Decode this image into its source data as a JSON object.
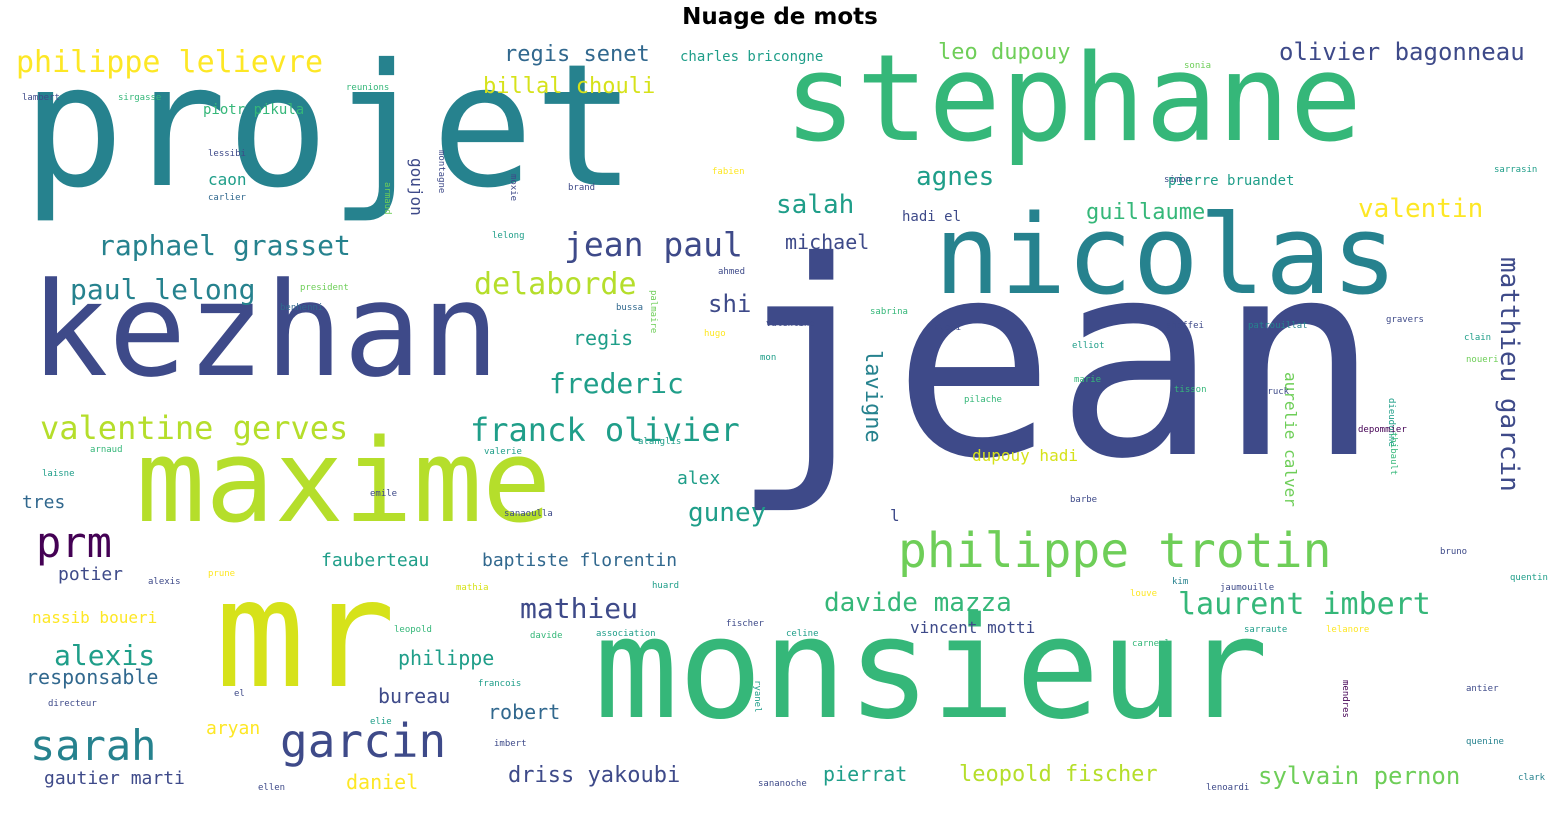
{
  "title": "Nuage de mots",
  "palette": {
    "v0": "#440154",
    "v1": "#3e4a89",
    "v2": "#31688e",
    "v3": "#26828e",
    "v4": "#1f9e89",
    "v5": "#35b779",
    "v6": "#6ece58",
    "v7": "#b5de2b",
    "v8": "#d6e21a",
    "v9": "#fde725"
  },
  "words": [
    {
      "text": "jean",
      "color": "v1"
    },
    {
      "text": "projet",
      "color": "v3"
    },
    {
      "text": "monsieur",
      "color": "v5"
    },
    {
      "text": "stephane",
      "color": "v5"
    },
    {
      "text": "kezhan",
      "color": "v1"
    },
    {
      "text": "nicolas",
      "color": "v3"
    },
    {
      "text": "maxime",
      "color": "v7"
    },
    {
      "text": "mr",
      "color": "v8"
    },
    {
      "text": "philippe trotin",
      "color": "v6"
    },
    {
      "text": "garcin",
      "color": "v1"
    },
    {
      "text": "sarah",
      "color": "v3"
    },
    {
      "text": "prm",
      "color": "v0"
    },
    {
      "text": "philippe lelievre",
      "color": "v9"
    },
    {
      "text": "raphael grasset",
      "color": "v3"
    },
    {
      "text": "jean paul",
      "color": "v1"
    },
    {
      "text": "valentine gerves",
      "color": "v7"
    },
    {
      "text": "franck olivier",
      "color": "v4"
    },
    {
      "text": "laurent imbert",
      "color": "v5"
    },
    {
      "text": "davide mazza",
      "color": "v5"
    },
    {
      "text": "paul lelong",
      "color": "v3"
    },
    {
      "text": "delaborde",
      "color": "v7"
    },
    {
      "text": "frederic",
      "color": "v4"
    },
    {
      "text": "matthieu garcin",
      "color": "v1"
    },
    {
      "text": "olivier bagonneau",
      "color": "v1"
    },
    {
      "text": "regis senet",
      "color": "v2"
    },
    {
      "text": "billal chouli",
      "color": "v8"
    },
    {
      "text": "salah",
      "color": "v4"
    },
    {
      "text": "agnes",
      "color": "v4"
    },
    {
      "text": "valentin",
      "color": "v9"
    },
    {
      "text": "guney",
      "color": "v4"
    },
    {
      "text": "alexis",
      "color": "v4"
    },
    {
      "text": "mathieu",
      "color": "v1"
    },
    {
      "text": "lavigne",
      "color": "v3"
    },
    {
      "text": "leo dupouy",
      "color": "v6"
    },
    {
      "text": "shi",
      "color": "v1"
    },
    {
      "text": "regis",
      "color": "v4"
    },
    {
      "text": "guillaume",
      "color": "v5"
    },
    {
      "text": "michael",
      "color": "v1"
    },
    {
      "text": "leopold fischer",
      "color": "v7"
    },
    {
      "text": "sylvain pernon",
      "color": "v6"
    },
    {
      "text": "driss yakoubi",
      "color": "v1"
    },
    {
      "text": "responsable",
      "color": "v2"
    },
    {
      "text": "philippe",
      "color": "v4"
    },
    {
      "text": "robert",
      "color": "v2"
    },
    {
      "text": "bureau",
      "color": "v1"
    },
    {
      "text": "pierrat",
      "color": "v4"
    },
    {
      "text": "fauberteau",
      "color": "v4"
    },
    {
      "text": "baptiste florentin",
      "color": "v2"
    },
    {
      "text": "potier",
      "color": "v1"
    },
    {
      "text": "gautier marti",
      "color": "v1"
    },
    {
      "text": "nassib boueri",
      "color": "v9"
    },
    {
      "text": "aryan",
      "color": "v9"
    },
    {
      "text": "daniel",
      "color": "v9"
    },
    {
      "text": "dupouy hadi",
      "color": "v8"
    },
    {
      "text": "alex",
      "color": "v4"
    },
    {
      "text": "vincent motti",
      "color": "v1"
    },
    {
      "text": "aurelie calver",
      "color": "v6"
    },
    {
      "text": "piotr pikula",
      "color": "v5"
    },
    {
      "text": "charles bricongne",
      "color": "v4"
    },
    {
      "text": "goujon",
      "color": "v1"
    },
    {
      "text": "caon",
      "color": "v4"
    },
    {
      "text": "hadi el",
      "color": "v1"
    },
    {
      "text": "pierre bruandet",
      "color": "v4"
    },
    {
      "text": "tres",
      "color": "v2"
    },
    {
      "text": "l",
      "color": "v1"
    },
    {
      "text": "ahmed",
      "color": "v1"
    },
    {
      "text": "valentine",
      "color": "v1"
    },
    {
      "text": "sabrina",
      "color": "v5"
    },
    {
      "text": "shaffei",
      "color": "v1"
    },
    {
      "text": "patrouillat",
      "color": "v3"
    },
    {
      "text": "dieudonne",
      "color": "v4"
    },
    {
      "text": "sarraute",
      "color": "v4"
    },
    {
      "text": "association",
      "color": "v4"
    },
    {
      "text": "fischer",
      "color": "v1"
    },
    {
      "text": "celine",
      "color": "v4"
    },
    {
      "text": "jaumouille",
      "color": "v1"
    },
    {
      "text": "quentin",
      "color": "v4"
    },
    {
      "text": "bruno",
      "color": "v1"
    },
    {
      "text": "depommier",
      "color": "v0"
    },
    {
      "text": "marie",
      "color": "v5"
    },
    {
      "text": "pilache",
      "color": "v5"
    },
    {
      "text": "tisson",
      "color": "v5"
    },
    {
      "text": "bruck",
      "color": "v1"
    },
    {
      "text": "clain",
      "color": "v4"
    },
    {
      "text": "gravers",
      "color": "v1"
    },
    {
      "text": "barbe",
      "color": "v1"
    },
    {
      "text": "kim",
      "color": "v3"
    },
    {
      "text": "huard",
      "color": "v4"
    },
    {
      "text": "leopold",
      "color": "v5"
    },
    {
      "text": "davide",
      "color": "v5"
    },
    {
      "text": "francois",
      "color": "v4"
    },
    {
      "text": "imbert",
      "color": "v1"
    },
    {
      "text": "ellen",
      "color": "v1"
    },
    {
      "text": "directeur",
      "color": "v1"
    },
    {
      "text": "lenoardi",
      "color": "v1"
    },
    {
      "text": "clark",
      "color": "v3"
    },
    {
      "text": "quenine",
      "color": "v3"
    },
    {
      "text": "antier",
      "color": "v1"
    },
    {
      "text": "carneel",
      "color": "v5"
    },
    {
      "text": "lelanore",
      "color": "v9"
    },
    {
      "text": "lambert",
      "color": "v1"
    },
    {
      "text": "sirgasse",
      "color": "v5"
    },
    {
      "text": "reunions",
      "color": "v5"
    },
    {
      "text": "sonia",
      "color": "v6"
    },
    {
      "text": "simon",
      "color": "v1"
    },
    {
      "text": "carlier",
      "color": "v2"
    },
    {
      "text": "brand",
      "color": "v1"
    },
    {
      "text": "lelong",
      "color": "v4"
    },
    {
      "text": "president",
      "color": "v6"
    },
    {
      "text": "benhenni",
      "color": "v2"
    },
    {
      "text": "bussa",
      "color": "v2"
    },
    {
      "text": "hugo",
      "color": "v9"
    },
    {
      "text": "avoni",
      "color": "v1"
    },
    {
      "text": "elliot",
      "color": "v4"
    },
    {
      "text": "arnaud",
      "color": "v5"
    },
    {
      "text": "valerie",
      "color": "v4"
    },
    {
      "text": "laisne",
      "color": "v4"
    },
    {
      "text": "emile",
      "color": "v1"
    },
    {
      "text": "alexis",
      "color": "v1"
    },
    {
      "text": "prune",
      "color": "v9"
    },
    {
      "text": "mathia",
      "color": "v8"
    },
    {
      "text": "el",
      "color": "v1"
    },
    {
      "text": "elie",
      "color": "v4"
    },
    {
      "text": "louve",
      "color": "v9"
    },
    {
      "text": "sananoche",
      "color": "v1"
    },
    {
      "text": "sanaoulla",
      "color": "v1"
    },
    {
      "text": "fabien",
      "color": "v9"
    },
    {
      "text": "lessibi",
      "color": "v1"
    },
    {
      "text": "montagne",
      "color": "v1"
    },
    {
      "text": "sarrasin",
      "color": "v4"
    },
    {
      "text": "moxie",
      "color": "v1"
    },
    {
      "text": "alanglis",
      "color": "v4"
    },
    {
      "text": "armaud",
      "color": "v6"
    },
    {
      "text": "ryanel",
      "color": "v4"
    },
    {
      "text": "palmaire",
      "color": "v6"
    },
    {
      "text": "mendres",
      "color": "v0"
    },
    {
      "text": "thibault",
      "color": "v5"
    },
    {
      "text": "mon",
      "color": "v4"
    },
    {
      "text": "noueri",
      "color": "v6"
    }
  ]
}
